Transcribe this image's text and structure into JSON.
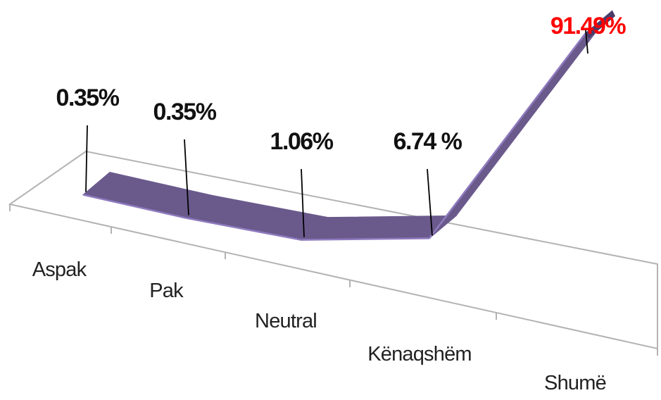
{
  "chart_data": {
    "type": "line",
    "style": "3d-ribbon",
    "categories": [
      "Aspak",
      "Pak",
      "Neutral",
      "Kënaqshëm",
      "Shumë"
    ],
    "values": [
      0.35,
      0.35,
      1.06,
      6.74,
      91.49
    ],
    "data_labels": [
      "0.35%",
      "0.35%",
      "1.06%",
      "6.74 %",
      "91.49%"
    ],
    "colors": {
      "ribbon_top": "#6a5a8c",
      "ribbon_side": "#4a3c6a",
      "ribbon_edge": "#8f7bbf",
      "leader": "#000000",
      "label_default": "#111111",
      "label_highlight": "#ff0000",
      "floor_outline": "#b3b3b3"
    },
    "highlight_index": 4,
    "title": "",
    "xlabel": "",
    "ylabel": "",
    "ylim": [
      0,
      100
    ],
    "grid": false,
    "legend": "none"
  }
}
